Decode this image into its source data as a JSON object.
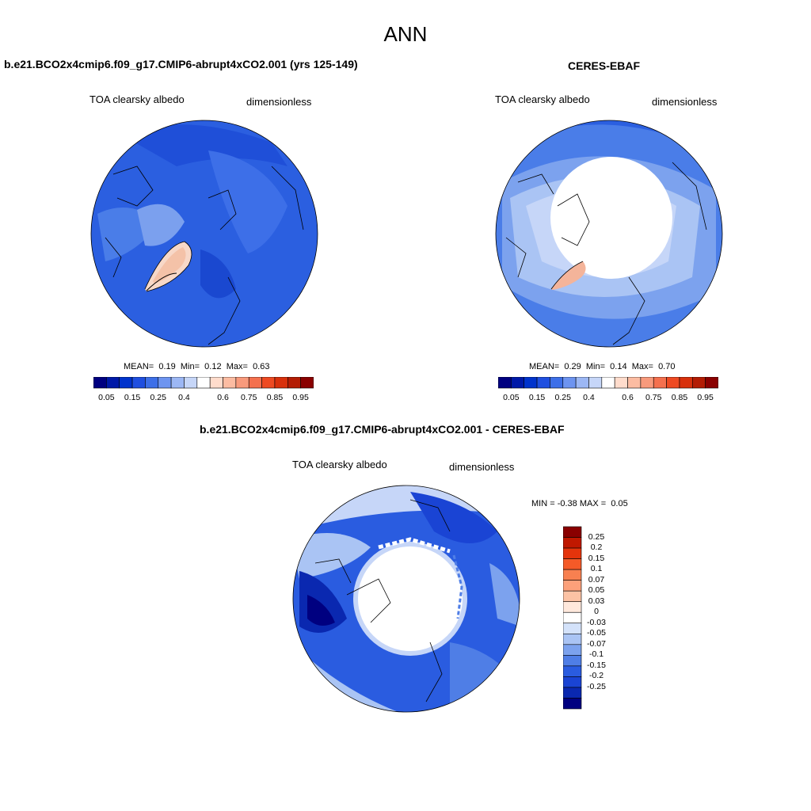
{
  "title": "ANN",
  "panels": [
    {
      "title": "b.e21.BCO2x4cmip6.f09_g17.CMIP6-abrupt4xCO2.001 (yrs 125-149)",
      "variable": "TOA clearsky albedo",
      "units": "dimensionless",
      "stats": {
        "mean_label": "MEAN=",
        "mean": "0.19",
        "min_label": "Min=",
        "min": "0.12",
        "max_label": "Max=",
        "max": "0.63"
      }
    },
    {
      "title": "CERES-EBAF",
      "variable": "TOA clearsky albedo",
      "units": "dimensionless",
      "stats": {
        "mean_label": "MEAN=",
        "mean": "0.29",
        "min_label": "Min=",
        "min": "0.14",
        "max_label": "Max=",
        "max": "0.70"
      }
    },
    {
      "title": "b.e21.BCO2x4cmip6.f09_g17.CMIP6-abrupt4xCO2.001 - CERES-EBAF",
      "variable": "TOA clearsky albedo",
      "units": "dimensionless",
      "stats": {
        "min_label": "MIN =",
        "min": "-0.38",
        "max_label": "MAX =",
        "max": "0.05"
      }
    }
  ],
  "colorbar_main": {
    "colors": [
      "#000080",
      "#0019a8",
      "#0033cc",
      "#1f4fe0",
      "#3d6fe8",
      "#6d94f0",
      "#9cb7f4",
      "#c6d6f8",
      "#ffffff",
      "#ffdccc",
      "#fcbca2",
      "#f89a7c",
      "#f4704e",
      "#ee4a22",
      "#d8300c",
      "#b31c04",
      "#8a0000"
    ],
    "tick_labels": [
      "0.05",
      "0.15",
      "0.25",
      "0.4",
      "0.6",
      "0.75",
      "0.85",
      "0.95"
    ]
  },
  "colorbar_diff": {
    "colors": [
      "#8a0000",
      "#c01800",
      "#e4340c",
      "#f45a28",
      "#f88050",
      "#fca07a",
      "#fcc2a4",
      "#ffe8dc",
      "#ffffff",
      "#d4e2fa",
      "#aac4f4",
      "#7ca2ee",
      "#4f7ee6",
      "#2a5ce0",
      "#1a44d4",
      "#0a28b0",
      "#000080"
    ],
    "tick_labels": [
      "0.25",
      "0.2",
      "0.15",
      "0.1",
      "0.07",
      "0.05",
      "0.03",
      "0",
      "-0.03",
      "-0.05",
      "-0.07",
      "-0.1",
      "-0.15",
      "-0.2",
      "-0.25"
    ]
  }
}
